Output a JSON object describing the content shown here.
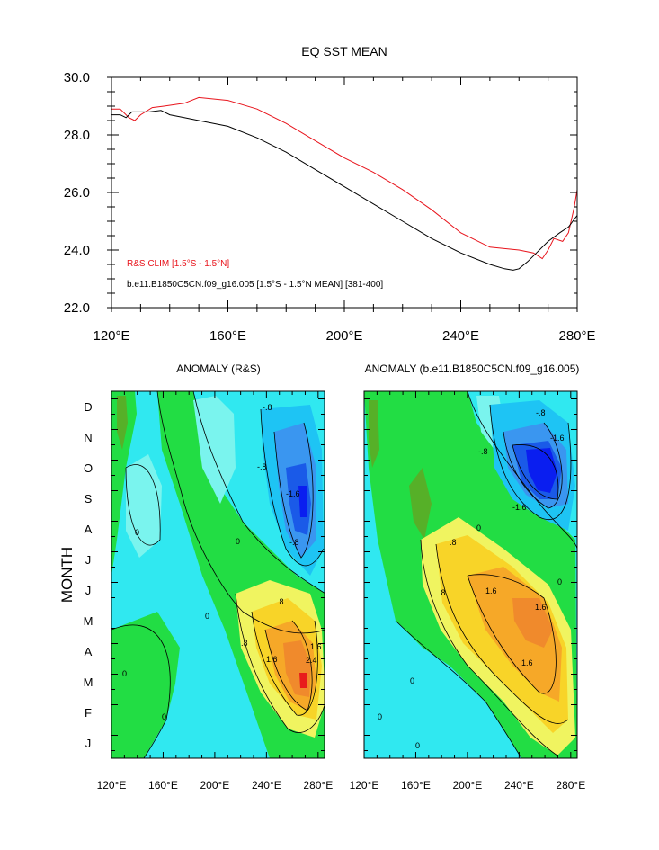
{
  "chart_data": [
    {
      "type": "line",
      "title": "EQ SST MEAN",
      "xlabel": "",
      "ylabel": "",
      "xlim": [
        120,
        280
      ],
      "ylim": [
        22,
        30
      ],
      "x_ticks": [
        {
          "v": 120,
          "label": "120°E"
        },
        {
          "v": 160,
          "label": "160°E"
        },
        {
          "v": 200,
          "label": "200°E"
        },
        {
          "v": 240,
          "label": "240°E"
        },
        {
          "v": 280,
          "label": "280°E"
        }
      ],
      "y_ticks": [
        {
          "v": 30,
          "label": "30.0"
        },
        {
          "v": 28,
          "label": "28.0"
        },
        {
          "v": 26,
          "label": "26.0"
        },
        {
          "v": 24,
          "label": "24.0"
        },
        {
          "v": 22,
          "label": "22.0"
        }
      ],
      "series": [
        {
          "name": "R&S CLIM [1.5°S - 1.5°N]",
          "color": "#e8141c",
          "x": [
            120,
            123,
            126,
            128,
            130,
            134,
            138,
            145,
            150,
            160,
            170,
            180,
            190,
            200,
            210,
            220,
            230,
            240,
            250,
            255,
            260,
            265,
            268,
            270,
            272,
            275,
            277,
            279,
            280
          ],
          "y": [
            28.9,
            28.9,
            28.6,
            28.5,
            28.7,
            28.95,
            29.0,
            29.1,
            29.3,
            29.2,
            28.9,
            28.4,
            27.8,
            27.2,
            26.7,
            26.1,
            25.4,
            24.6,
            24.1,
            24.05,
            24.0,
            23.9,
            23.7,
            24.0,
            24.4,
            24.3,
            24.6,
            25.5,
            26.1
          ]
        },
        {
          "name": "b.e11.B1850C5CN.f09_g16.005 [1.5°S - 1.5°N MEAN] [381-400]",
          "color": "#000000",
          "x": [
            120,
            123,
            125,
            127,
            130,
            133,
            137,
            140,
            145,
            150,
            160,
            170,
            180,
            190,
            200,
            210,
            220,
            230,
            240,
            250,
            255,
            258,
            260,
            263,
            266,
            270,
            274,
            277,
            280
          ],
          "y": [
            28.7,
            28.7,
            28.6,
            28.8,
            28.8,
            28.8,
            28.85,
            28.7,
            28.6,
            28.5,
            28.3,
            27.9,
            27.4,
            26.8,
            26.2,
            25.6,
            25.0,
            24.4,
            23.9,
            23.5,
            23.35,
            23.3,
            23.35,
            23.6,
            23.9,
            24.3,
            24.6,
            24.8,
            25.2
          ]
        }
      ]
    },
    {
      "type": "heatmap",
      "title": "ANOMALY (R&S)",
      "xlabel": "",
      "ylabel": "MONTH",
      "xlim": [
        120,
        285
      ],
      "x_ticks": [
        {
          "v": 120,
          "label": "120°E"
        },
        {
          "v": 160,
          "label": "160°E"
        },
        {
          "v": 200,
          "label": "200°E"
        },
        {
          "v": 240,
          "label": "240°E"
        },
        {
          "v": 280,
          "label": "280°E"
        }
      ],
      "months": [
        "J",
        "F",
        "M",
        "A",
        "M",
        "J",
        "J",
        "A",
        "S",
        "O",
        "N",
        "D"
      ],
      "contour_labels": [
        "-.8",
        "-.8",
        "-1.6",
        "-.8",
        "0",
        "0",
        "0",
        ".8",
        ".8",
        "1.6",
        "2.4",
        "1.6",
        "0",
        "0"
      ]
    },
    {
      "type": "heatmap",
      "title": "ANOMALY (b.e11.B1850C5CN.f09_g16.005)",
      "xlabel": "",
      "ylabel": "",
      "xlim": [
        120,
        285
      ],
      "x_ticks": [
        {
          "v": 120,
          "label": "120°E"
        },
        {
          "v": 160,
          "label": "160°E"
        },
        {
          "v": 200,
          "label": "200°E"
        },
        {
          "v": 240,
          "label": "240°E"
        },
        {
          "v": 280,
          "label": "280°E"
        }
      ],
      "months": [
        "J",
        "F",
        "M",
        "A",
        "M",
        "J",
        "J",
        "A",
        "S",
        "O",
        "N",
        "D"
      ],
      "contour_labels": [
        "-.8",
        "-1.6",
        "-.8",
        "-1.6",
        "0",
        "0",
        ".8",
        ".8",
        "1.6",
        "1.6",
        "1.6",
        "0",
        "0",
        "0"
      ]
    }
  ]
}
